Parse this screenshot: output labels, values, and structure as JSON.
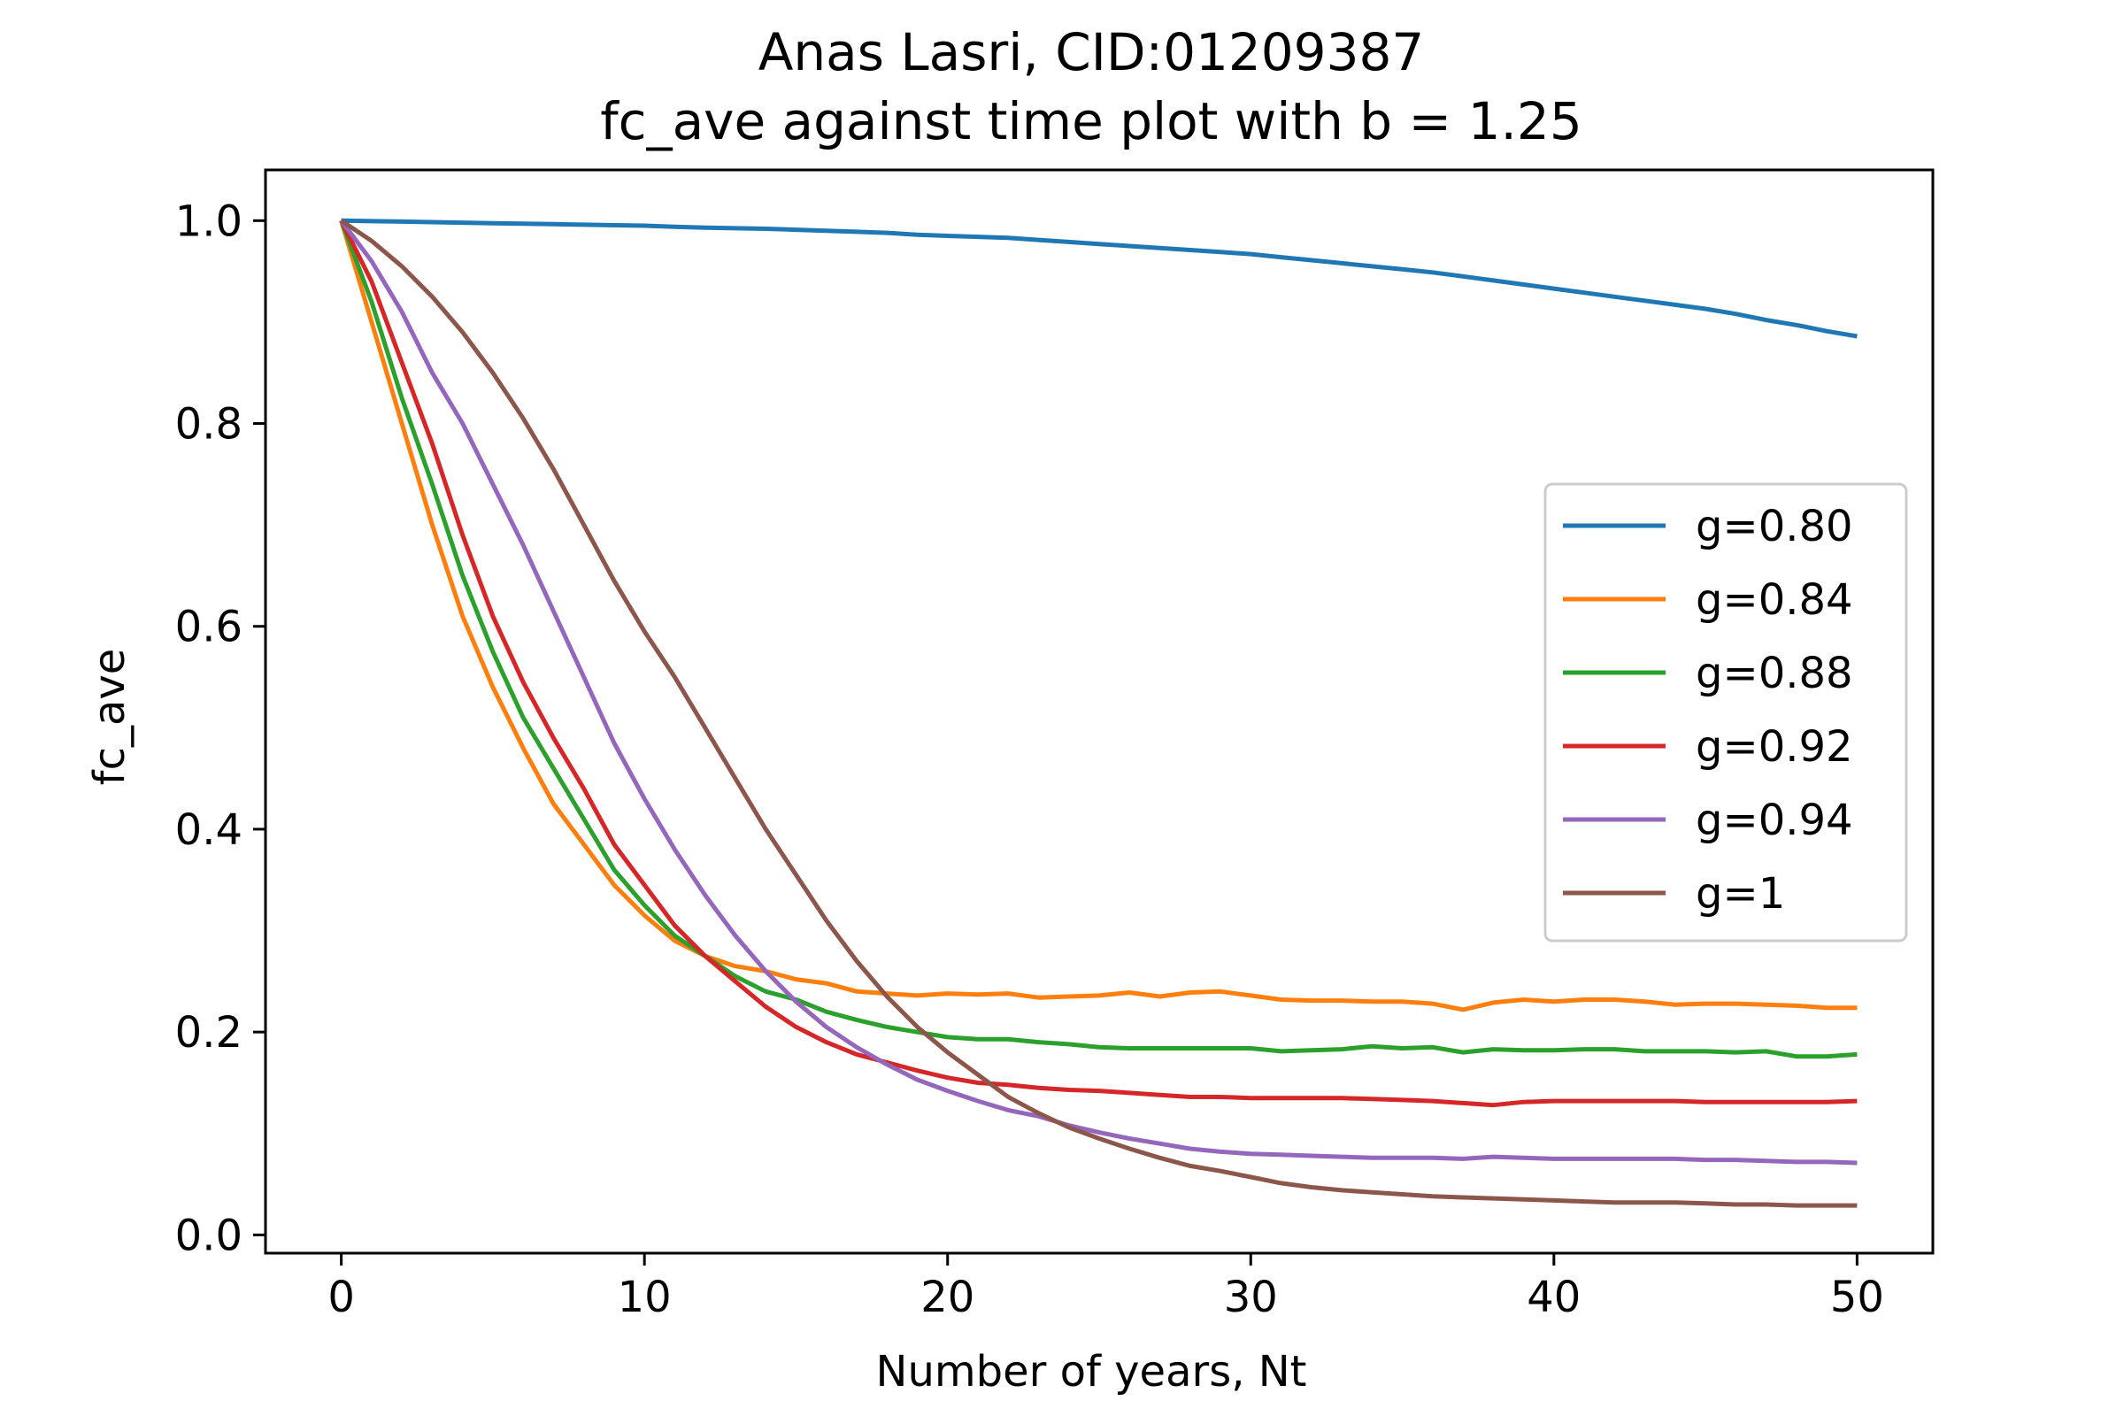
{
  "chart_data": {
    "type": "line",
    "title": [
      "Anas Lasri, CID:01209387",
      "fc_ave against time plot with b = 1.25"
    ],
    "xlabel": "Number of years, Nt",
    "ylabel": "fc_ave",
    "xlim": [
      -2.5,
      52.5
    ],
    "ylim": [
      -0.018,
      1.05
    ],
    "xticks": [
      0,
      10,
      20,
      30,
      40,
      50
    ],
    "xtick_labels": [
      "0",
      "10",
      "20",
      "30",
      "40",
      "50"
    ],
    "yticks": [
      0.0,
      0.2,
      0.4,
      0.6,
      0.8,
      1.0
    ],
    "ytick_labels": [
      "0.0",
      "0.2",
      "0.4",
      "0.6",
      "0.8",
      "1.0"
    ],
    "grid": false,
    "legend_position": "center-right",
    "x": [
      0,
      1,
      2,
      3,
      4,
      5,
      6,
      7,
      8,
      9,
      10,
      11,
      12,
      13,
      14,
      15,
      16,
      17,
      18,
      19,
      20,
      21,
      22,
      23,
      24,
      25,
      26,
      27,
      28,
      29,
      30,
      31,
      32,
      33,
      34,
      35,
      36,
      37,
      38,
      39,
      40,
      41,
      42,
      43,
      44,
      45,
      46,
      47,
      48,
      49,
      50
    ],
    "series": [
      {
        "name": "g=0.80",
        "color": "#1f77b4",
        "values": [
          1.0,
          0.9995,
          0.999,
          0.9985,
          0.998,
          0.9975,
          0.997,
          0.9965,
          0.996,
          0.9955,
          0.995,
          0.994,
          0.993,
          0.9925,
          0.992,
          0.991,
          0.99,
          0.989,
          0.988,
          0.986,
          0.985,
          0.984,
          0.983,
          0.981,
          0.979,
          0.977,
          0.975,
          0.973,
          0.971,
          0.969,
          0.967,
          0.964,
          0.961,
          0.958,
          0.955,
          0.952,
          0.949,
          0.945,
          0.941,
          0.937,
          0.933,
          0.929,
          0.925,
          0.921,
          0.917,
          0.913,
          0.908,
          0.902,
          0.897,
          0.891,
          0.886
        ]
      },
      {
        "name": "g=0.84",
        "color": "#ff7f0e",
        "values": [
          1.0,
          0.9,
          0.8,
          0.7,
          0.61,
          0.54,
          0.48,
          0.425,
          0.385,
          0.345,
          0.315,
          0.29,
          0.275,
          0.265,
          0.26,
          0.252,
          0.248,
          0.24,
          0.238,
          0.236,
          0.238,
          0.237,
          0.238,
          0.234,
          0.235,
          0.236,
          0.239,
          0.235,
          0.239,
          0.24,
          0.236,
          0.232,
          0.231,
          0.231,
          0.23,
          0.23,
          0.228,
          0.222,
          0.229,
          0.232,
          0.23,
          0.232,
          0.232,
          0.23,
          0.227,
          0.228,
          0.228,
          0.227,
          0.226,
          0.224,
          0.224
        ]
      },
      {
        "name": "g=0.88",
        "color": "#2ca02c",
        "values": [
          1.0,
          0.92,
          0.825,
          0.74,
          0.65,
          0.575,
          0.51,
          0.46,
          0.41,
          0.36,
          0.325,
          0.295,
          0.275,
          0.255,
          0.24,
          0.232,
          0.22,
          0.212,
          0.205,
          0.2,
          0.195,
          0.193,
          0.193,
          0.19,
          0.188,
          0.185,
          0.184,
          0.184,
          0.184,
          0.184,
          0.184,
          0.181,
          0.182,
          0.183,
          0.186,
          0.184,
          0.185,
          0.18,
          0.183,
          0.182,
          0.182,
          0.183,
          0.183,
          0.181,
          0.181,
          0.181,
          0.18,
          0.181,
          0.176,
          0.176,
          0.178
        ]
      },
      {
        "name": "g=0.92",
        "color": "#d62728",
        "values": [
          1.0,
          0.94,
          0.86,
          0.78,
          0.69,
          0.61,
          0.545,
          0.49,
          0.44,
          0.385,
          0.345,
          0.305,
          0.275,
          0.25,
          0.225,
          0.205,
          0.19,
          0.178,
          0.17,
          0.162,
          0.155,
          0.15,
          0.148,
          0.145,
          0.143,
          0.142,
          0.14,
          0.138,
          0.136,
          0.136,
          0.135,
          0.135,
          0.135,
          0.135,
          0.134,
          0.133,
          0.132,
          0.13,
          0.128,
          0.131,
          0.132,
          0.132,
          0.132,
          0.132,
          0.132,
          0.131,
          0.131,
          0.131,
          0.131,
          0.131,
          0.132
        ]
      },
      {
        "name": "g=0.94",
        "color": "#9467bd",
        "values": [
          1.0,
          0.96,
          0.91,
          0.85,
          0.8,
          0.74,
          0.68,
          0.615,
          0.55,
          0.485,
          0.43,
          0.38,
          0.335,
          0.295,
          0.26,
          0.23,
          0.205,
          0.185,
          0.168,
          0.153,
          0.142,
          0.132,
          0.123,
          0.117,
          0.108,
          0.101,
          0.095,
          0.09,
          0.085,
          0.082,
          0.08,
          0.079,
          0.078,
          0.077,
          0.076,
          0.076,
          0.076,
          0.075,
          0.077,
          0.076,
          0.075,
          0.075,
          0.075,
          0.075,
          0.075,
          0.074,
          0.074,
          0.073,
          0.072,
          0.072,
          0.071
        ]
      },
      {
        "name": "g=1",
        "color": "#8c564b",
        "values": [
          1.0,
          0.98,
          0.955,
          0.925,
          0.89,
          0.85,
          0.805,
          0.755,
          0.7,
          0.645,
          0.595,
          0.55,
          0.5,
          0.45,
          0.4,
          0.355,
          0.31,
          0.27,
          0.235,
          0.205,
          0.18,
          0.158,
          0.136,
          0.12,
          0.106,
          0.095,
          0.085,
          0.076,
          0.068,
          0.063,
          0.057,
          0.051,
          0.047,
          0.044,
          0.042,
          0.04,
          0.038,
          0.037,
          0.036,
          0.035,
          0.034,
          0.033,
          0.032,
          0.032,
          0.032,
          0.031,
          0.03,
          0.03,
          0.029,
          0.029,
          0.029
        ]
      }
    ]
  }
}
